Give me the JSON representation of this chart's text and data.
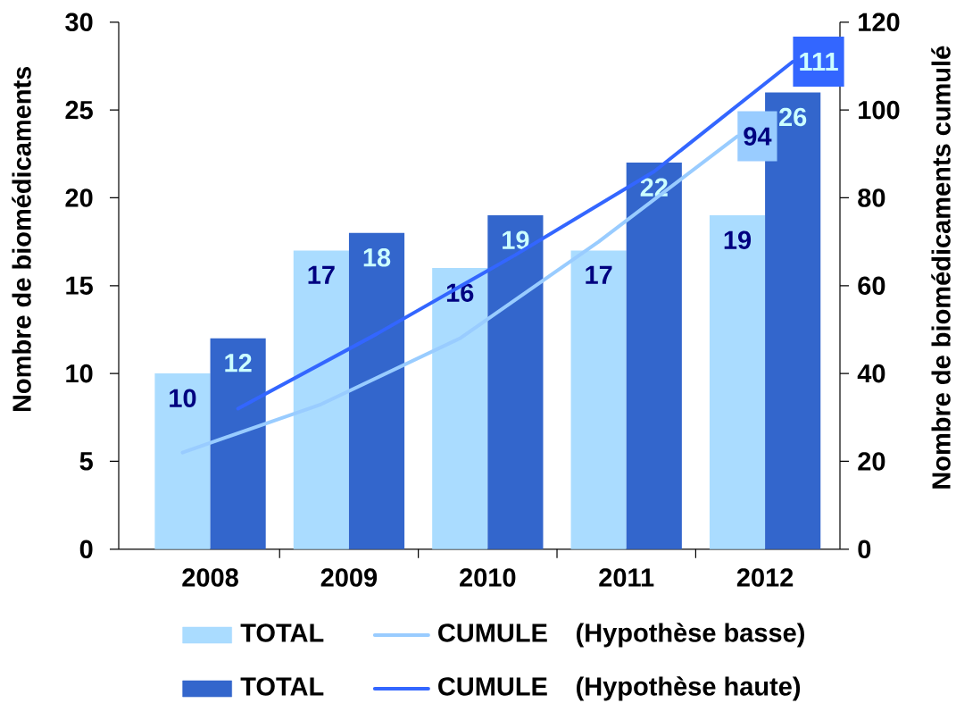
{
  "chart_data": {
    "type": "bar",
    "categories": [
      "2008",
      "2009",
      "2010",
      "2011",
      "2012"
    ],
    "ylabel": "Nombre de biomédicaments",
    "y2label": "Nombre de biomédicaments cumulé",
    "ylim": [
      0,
      30
    ],
    "yticks": [
      0,
      5,
      10,
      15,
      20,
      25,
      30
    ],
    "y2lim": [
      0,
      120
    ],
    "y2ticks": [
      0,
      20,
      40,
      60,
      80,
      100,
      120
    ],
    "series": [
      {
        "name": "TOTAL",
        "color": "#aadcff",
        "values": [
          10,
          17,
          16,
          17,
          19
        ],
        "value_labels": [
          "10",
          "17",
          "16",
          "17",
          "19"
        ]
      },
      {
        "name": "TOTAL",
        "color": "#3366cc",
        "values": [
          12,
          18,
          19,
          22,
          26
        ],
        "value_labels": [
          "12",
          "18",
          "19",
          "22",
          "26"
        ]
      },
      {
        "name": "CUMULE",
        "type": "line",
        "axis": "y2",
        "color": "#99ccff",
        "values": [
          22,
          33,
          48,
          70,
          94
        ],
        "value_labels": [
          null,
          null,
          null,
          null,
          "94"
        ]
      },
      {
        "name": "CUMULE",
        "type": "line",
        "axis": "y2",
        "color": "#3366ff",
        "values": [
          32,
          49,
          67,
          86,
          111
        ],
        "value_labels": [
          null,
          null,
          null,
          null,
          "111"
        ]
      }
    ],
    "annotations": [
      "(Hypothèse basse)",
      "(Hypothèse haute)"
    ],
    "legend": "bottom",
    "line_style": "solid"
  }
}
